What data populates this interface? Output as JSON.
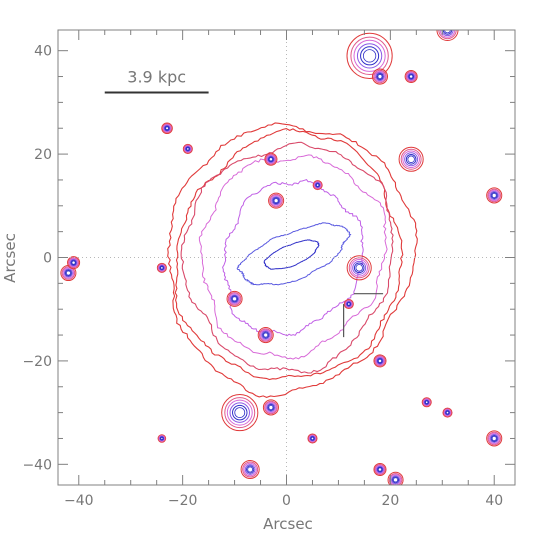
{
  "chart_data": {
    "type": "contour",
    "xlabel": "Arcsec",
    "ylabel": "Arcsec",
    "xlim": [
      -44,
      44
    ],
    "ylim": [
      -44,
      44
    ],
    "x_ticks": [
      -40,
      -20,
      0,
      20,
      40
    ],
    "y_ticks": [
      -40,
      -20,
      0,
      20,
      40
    ],
    "x_tick_labels": [
      "−40",
      "−20",
      "0",
      "20",
      "40"
    ],
    "y_tick_labels": [
      "−40",
      "−20",
      "0",
      "20",
      "40"
    ],
    "grid": "dotted lines at x=0 and y=0",
    "scale_bar": {
      "label": "3.9 kpc",
      "x_start": -35,
      "x_end": -15,
      "y": 35
    },
    "isophotes": [
      {
        "level": 1,
        "color": "#e03a3a",
        "rx": 23.5,
        "ry": 26.0,
        "cx": 0.5,
        "cy": 0.0,
        "rot": -15,
        "noise": 0.05
      },
      {
        "level": 2,
        "color": "#e03a3a",
        "rx": 21.5,
        "ry": 24.0,
        "cx": 0.5,
        "cy": 0.0,
        "rot": -15,
        "noise": 0.05
      },
      {
        "level": 3,
        "color": "#d94a6a",
        "rx": 20.0,
        "ry": 22.0,
        "cx": 0.5,
        "cy": 0.2,
        "rot": -15,
        "noise": 0.06
      },
      {
        "level": 4,
        "color": "#d86ad8",
        "rx": 17.5,
        "ry": 19.5,
        "cx": 1.0,
        "cy": 0.5,
        "rot": -20,
        "noise": 0.07
      },
      {
        "level": 5,
        "color": "#c060e6",
        "rx": 13.0,
        "ry": 15.0,
        "cx": 1.0,
        "cy": 0.0,
        "rot": -25,
        "noise": 0.08
      },
      {
        "level": 6,
        "color": "#5a5ae0",
        "rx": 11.0,
        "ry": 4.5,
        "cx": 1.5,
        "cy": 0.5,
        "rot": 22,
        "noise": 0.08
      },
      {
        "level": 7,
        "color": "#3030c8",
        "rx": 5.5,
        "ry": 2.0,
        "cx": 1.0,
        "cy": 0.5,
        "rot": 22,
        "noise": 0.06
      }
    ],
    "point_sources": [
      {
        "x": 16,
        "y": 39,
        "size": 3.0
      },
      {
        "x": 18,
        "y": 35,
        "size": 1.0
      },
      {
        "x": 31,
        "y": 44,
        "size": 1.4
      },
      {
        "x": 24,
        "y": 19,
        "size": 1.6
      },
      {
        "x": 40,
        "y": 12,
        "size": 1.0
      },
      {
        "x": 14,
        "y": -2,
        "size": 1.6
      },
      {
        "x": -10,
        "y": -8,
        "size": 1.0
      },
      {
        "x": -4,
        "y": -15,
        "size": 1.0
      },
      {
        "x": -3,
        "y": -29,
        "size": 1.0
      },
      {
        "x": -9,
        "y": -30,
        "size": 2.4
      },
      {
        "x": -7,
        "y": -41,
        "size": 1.2
      },
      {
        "x": 18,
        "y": -41,
        "size": 0.8
      },
      {
        "x": 21,
        "y": -43,
        "size": 1.0
      },
      {
        "x": 40,
        "y": -35,
        "size": 1.0
      },
      {
        "x": -42,
        "y": -3,
        "size": 1.0
      },
      {
        "x": -41,
        "y": -1,
        "size": 0.8
      },
      {
        "x": -3,
        "y": 19,
        "size": 0.8
      },
      {
        "x": 6,
        "y": 14,
        "size": 0.6
      },
      {
        "x": -2,
        "y": 11,
        "size": 1.0
      },
      {
        "x": 24,
        "y": 35,
        "size": 0.8
      },
      {
        "x": -23,
        "y": 25,
        "size": 0.7
      },
      {
        "x": -19,
        "y": 21,
        "size": 0.6
      },
      {
        "x": 18,
        "y": -20,
        "size": 0.8
      },
      {
        "x": 12,
        "y": -9,
        "size": 0.6
      },
      {
        "x": -24,
        "y": -2,
        "size": 0.6
      },
      {
        "x": 5,
        "y": -35,
        "size": 0.6
      },
      {
        "x": 27,
        "y": -28,
        "size": 0.6
      },
      {
        "x": 31,
        "y": -30,
        "size": 0.6
      },
      {
        "x": -24,
        "y": -35,
        "size": 0.5
      }
    ],
    "marker": {
      "x": 11,
      "y": -7,
      "arm": 8
    }
  },
  "colors": {
    "axis": "#777777",
    "outer_isophote": "#e03a3a",
    "middle_isophote": "#d86ad8",
    "inner_isophote": "#3030c8",
    "axis_frame": "#808080"
  }
}
